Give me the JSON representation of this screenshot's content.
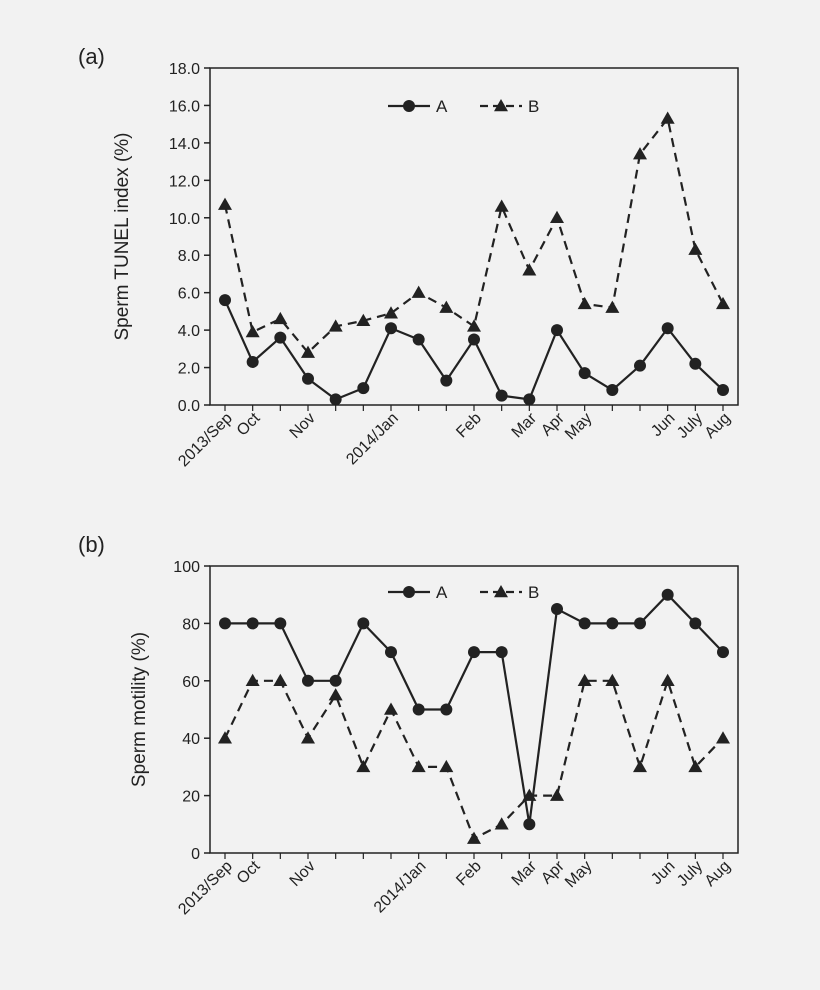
{
  "chart_data": [
    {
      "panel_label": "(a)",
      "type": "line",
      "ylabel": "Sperm TUNEL index (%)",
      "ylim": [
        0,
        18
      ],
      "yticks": [
        "0.0",
        "2.0",
        "4.0",
        "6.0",
        "8.0",
        "10.0",
        "12.0",
        "14.0",
        "16.0",
        "18.0"
      ],
      "x_count": 19,
      "xtick_labels": [
        {
          "label": "2013/Sep",
          "x": 0
        },
        {
          "label": "Oct",
          "x": 1
        },
        {
          "label": "Nov",
          "x": 3
        },
        {
          "label": "2014/Jan",
          "x": 6
        },
        {
          "label": "Feb",
          "x": 9
        },
        {
          "label": "Mar",
          "x": 11
        },
        {
          "label": "Apr",
          "x": 12
        },
        {
          "label": "May",
          "x": 13
        },
        {
          "label": "Jun",
          "x": 16
        },
        {
          "label": "July",
          "x": 17
        },
        {
          "label": "Aug",
          "x": 18
        }
      ],
      "legend": {
        "position": "top-center",
        "entries": [
          "A",
          "B"
        ]
      },
      "series": [
        {
          "name": "A",
          "style": "solid",
          "marker": "circle",
          "values": [
            5.6,
            2.3,
            3.6,
            1.4,
            0.3,
            0.9,
            4.1,
            3.5,
            1.3,
            3.5,
            0.5,
            0.3,
            4.0,
            1.7,
            0.8,
            2.1,
            4.1,
            2.2,
            0.8
          ]
        },
        {
          "name": "B",
          "style": "dashed",
          "marker": "triangle",
          "values": [
            10.7,
            3.9,
            4.6,
            2.8,
            4.2,
            4.5,
            4.9,
            6.0,
            5.2,
            4.2,
            10.6,
            7.2,
            10.0,
            5.4,
            5.2,
            13.4,
            15.3,
            8.3,
            5.4
          ]
        }
      ]
    },
    {
      "panel_label": "(b)",
      "type": "line",
      "ylabel": "Sperm motility (%)",
      "ylim": [
        0,
        100
      ],
      "yticks": [
        "0",
        "20",
        "40",
        "60",
        "80",
        "100"
      ],
      "x_count": 19,
      "xtick_labels": [
        {
          "label": "2013/Sep",
          "x": 0
        },
        {
          "label": "Oct",
          "x": 1
        },
        {
          "label": "Nov",
          "x": 3
        },
        {
          "label": "2014/Jan",
          "x": 7
        },
        {
          "label": "Feb",
          "x": 9
        },
        {
          "label": "Mar",
          "x": 11
        },
        {
          "label": "Apr",
          "x": 12
        },
        {
          "label": "May",
          "x": 13
        },
        {
          "label": "Jun",
          "x": 16
        },
        {
          "label": "July",
          "x": 17
        },
        {
          "label": "Aug",
          "x": 18
        }
      ],
      "legend": {
        "position": "top-center",
        "entries": [
          "A",
          "B"
        ]
      },
      "series": [
        {
          "name": "A",
          "style": "solid",
          "marker": "circle",
          "values": [
            80,
            80,
            80,
            60,
            60,
            80,
            70,
            50,
            50,
            70,
            70,
            10,
            85,
            80,
            80,
            80,
            90,
            80,
            70
          ]
        },
        {
          "name": "B",
          "style": "dashed",
          "marker": "triangle",
          "values": [
            40,
            60,
            60,
            40,
            55,
            30,
            50,
            30,
            30,
            5,
            10,
            20,
            20,
            60,
            60,
            30,
            60,
            30,
            40
          ]
        }
      ]
    }
  ]
}
